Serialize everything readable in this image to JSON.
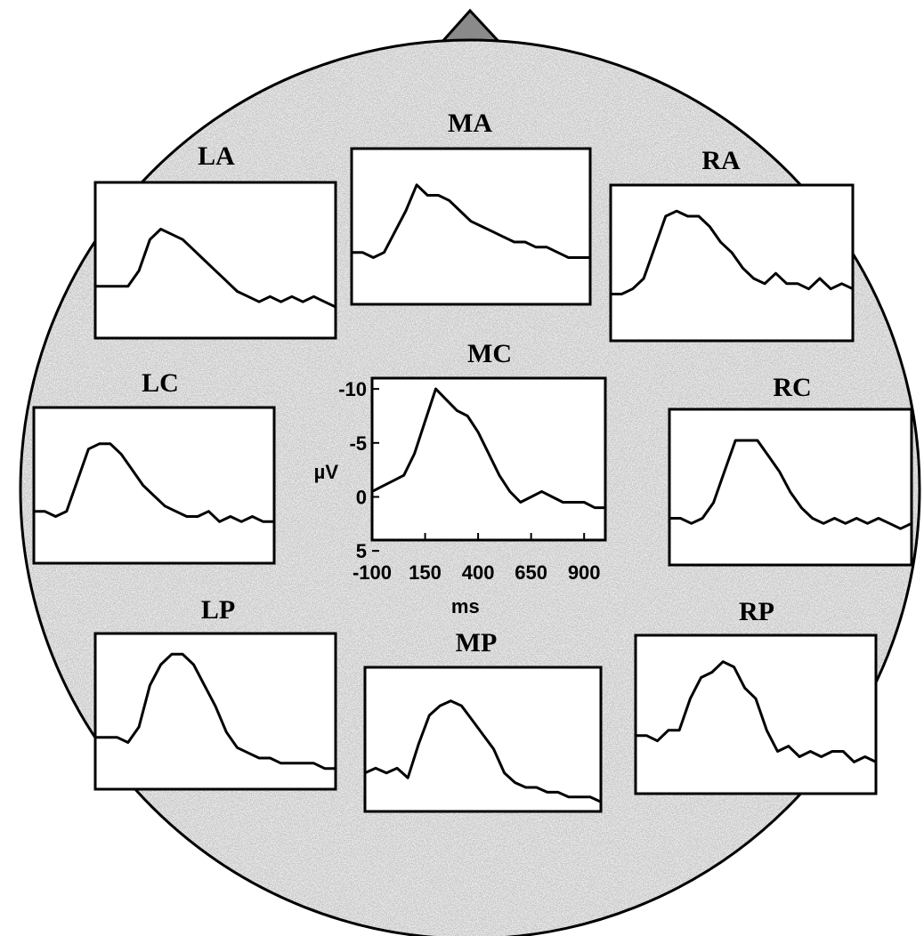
{
  "chart_data": [
    {
      "type": "line",
      "title": "LA",
      "x": [
        -100,
        -50,
        0,
        50,
        100,
        150,
        200,
        250,
        300,
        350,
        400,
        450,
        500,
        550,
        600,
        650,
        700,
        750,
        800,
        850,
        900,
        950,
        1000
      ],
      "values": [
        -1,
        -1,
        -1,
        -1,
        -2.5,
        -5.5,
        -6.5,
        -6,
        -5.5,
        -4.5,
        -3.5,
        -2.5,
        -1.5,
        -0.5,
        0,
        0.5,
        0,
        0.5,
        0,
        0.5,
        0,
        0.5,
        1
      ],
      "xlim": [
        -100,
        1000
      ],
      "ylim": [
        4,
        -11
      ],
      "color": "#000000"
    },
    {
      "type": "line",
      "title": "MA",
      "x": [
        -100,
        -50,
        0,
        50,
        100,
        150,
        200,
        250,
        300,
        350,
        400,
        450,
        500,
        550,
        600,
        650,
        700,
        750,
        800,
        850,
        900,
        950,
        1000
      ],
      "values": [
        -1,
        -1,
        -0.5,
        -1,
        -3,
        -5,
        -7.5,
        -6.5,
        -6.5,
        -6,
        -5,
        -4,
        -3.5,
        -3,
        -2.5,
        -2,
        -2,
        -1.5,
        -1.5,
        -1,
        -0.5,
        -0.5,
        -0.5
      ],
      "xlim": [
        -100,
        1000
      ],
      "ylim": [
        4,
        -11
      ],
      "color": "#000000"
    },
    {
      "type": "line",
      "title": "RA",
      "x": [
        -100,
        -50,
        0,
        50,
        100,
        150,
        200,
        250,
        300,
        350,
        400,
        450,
        500,
        550,
        600,
        650,
        700,
        750,
        800,
        850,
        900,
        950,
        1000
      ],
      "values": [
        -0.5,
        -0.5,
        -1,
        -2,
        -5,
        -8,
        -8.5,
        -8,
        -8,
        -7,
        -5.5,
        -4.5,
        -3,
        -2,
        -1.5,
        -2.5,
        -1.5,
        -1.5,
        -1,
        -2,
        -1,
        -1.5,
        -1
      ],
      "xlim": [
        -100,
        1000
      ],
      "ylim": [
        4,
        -11
      ],
      "color": "#000000"
    },
    {
      "type": "line",
      "title": "LC",
      "x": [
        -100,
        -50,
        0,
        50,
        100,
        150,
        200,
        250,
        300,
        350,
        400,
        450,
        500,
        550,
        600,
        650,
        700,
        750,
        800,
        850,
        900,
        950,
        1000
      ],
      "values": [
        -1,
        -1,
        -0.5,
        -1,
        -4,
        -7,
        -7.5,
        -7.5,
        -6.5,
        -5,
        -3.5,
        -2.5,
        -1.5,
        -1,
        -0.5,
        -0.5,
        -1,
        0,
        -0.5,
        0,
        -0.5,
        0,
        0
      ],
      "xlim": [
        -100,
        1000
      ],
      "ylim": [
        4,
        -11
      ],
      "color": "#000000"
    },
    {
      "type": "line",
      "title": "MC",
      "x": [
        -100,
        -50,
        0,
        50,
        100,
        150,
        200,
        250,
        300,
        350,
        400,
        450,
        500,
        550,
        600,
        650,
        700,
        750,
        800,
        850,
        900,
        950,
        1000
      ],
      "values": [
        -0.5,
        -1,
        -1.5,
        -2,
        -4,
        -7,
        -10,
        -9,
        -8,
        -7.5,
        -6,
        -4,
        -2,
        -0.5,
        0.5,
        0,
        -0.5,
        0,
        0.5,
        0.5,
        0.5,
        1,
        1
      ],
      "xlim": [
        -100,
        1000
      ],
      "ylim": [
        4,
        -11
      ],
      "yticks": [
        -10,
        -5,
        0,
        5
      ],
      "xticks": [
        -100,
        150,
        400,
        650,
        900
      ],
      "xlabel": "ms",
      "ylabel": "µV",
      "color": "#000000"
    },
    {
      "type": "line",
      "title": "RC",
      "x": [
        -100,
        -50,
        0,
        50,
        100,
        150,
        200,
        250,
        300,
        350,
        400,
        450,
        500,
        550,
        600,
        650,
        700,
        750,
        800,
        850,
        900,
        950,
        1000
      ],
      "values": [
        -0.5,
        -0.5,
        0,
        -0.5,
        -2,
        -5,
        -8,
        -8,
        -8,
        -6.5,
        -5,
        -3,
        -1.5,
        -0.5,
        0,
        -0.5,
        0,
        -0.5,
        0,
        -0.5,
        0,
        0.5,
        0
      ],
      "xlim": [
        -100,
        1000
      ],
      "ylim": [
        4,
        -11
      ],
      "color": "#000000"
    },
    {
      "type": "line",
      "title": "LP",
      "x": [
        -100,
        -50,
        0,
        50,
        100,
        150,
        200,
        250,
        300,
        350,
        400,
        450,
        500,
        550,
        600,
        650,
        700,
        750,
        800,
        850,
        900,
        950,
        1000
      ],
      "values": [
        -1,
        -1,
        -1,
        -0.5,
        -2,
        -6,
        -8,
        -9,
        -9,
        -8,
        -6,
        -4,
        -1.5,
        0,
        0.5,
        1,
        1,
        1.5,
        1.5,
        1.5,
        1.5,
        2,
        2
      ],
      "xlim": [
        -100,
        1000
      ],
      "ylim": [
        4,
        -11
      ],
      "color": "#000000"
    },
    {
      "type": "line",
      "title": "MP",
      "x": [
        -100,
        -50,
        0,
        50,
        100,
        150,
        200,
        250,
        300,
        350,
        400,
        450,
        500,
        550,
        600,
        650,
        700,
        750,
        800,
        850,
        900,
        950,
        1000
      ],
      "values": [
        0,
        -0.5,
        0,
        -0.5,
        0.5,
        -3,
        -6,
        -7,
        -7.5,
        -7,
        -5.5,
        -4,
        -2.5,
        0,
        1,
        1.5,
        1.5,
        2,
        2,
        2.5,
        2.5,
        2.5,
        3
      ],
      "xlim": [
        -100,
        1000
      ],
      "ylim": [
        4,
        -11
      ],
      "color": "#000000"
    },
    {
      "type": "line",
      "title": "RP",
      "x": [
        -100,
        -50,
        0,
        50,
        100,
        150,
        200,
        250,
        300,
        350,
        400,
        450,
        500,
        550,
        600,
        650,
        700,
        750,
        800,
        850,
        900,
        950,
        1000
      ],
      "values": [
        -1.5,
        -1.5,
        -1,
        -2,
        -2,
        -5,
        -7,
        -7.5,
        -8.5,
        -8,
        -6,
        -5,
        -2,
        0,
        -0.5,
        0.5,
        0,
        0.5,
        0,
        0,
        1,
        0.5,
        1
      ],
      "xlim": [
        -100,
        1000
      ],
      "ylim": [
        4,
        -11
      ],
      "color": "#000000"
    }
  ]
}
